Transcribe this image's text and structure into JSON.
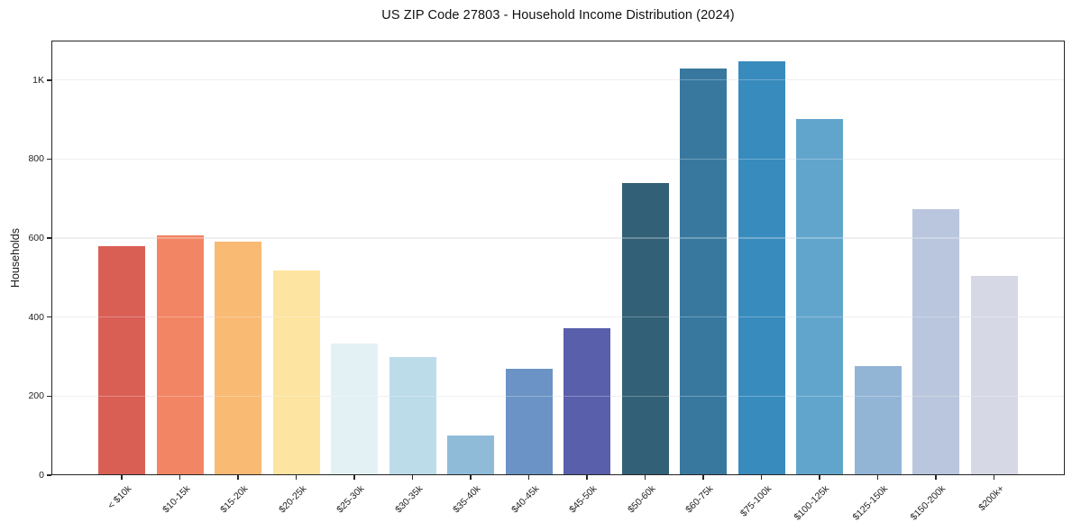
{
  "chart": {
    "title": "US ZIP Code 27803 - Household Income Distribution (2024)",
    "ylabel": "Households"
  },
  "chart_data": {
    "type": "bar",
    "title": "US ZIP Code 27803 - Household Income Distribution (2024)",
    "xlabel": "",
    "ylabel": "Households",
    "categories": [
      "< $10k",
      "$10-15k",
      "$15-20k",
      "$20-25k",
      "$25-30k",
      "$30-35k",
      "$35-40k",
      "$40-45k",
      "$45-50k",
      "$50-60k",
      "$60-75k",
      "$75-100k",
      "$100-125k",
      "$125-150k",
      "$150-200k",
      "$200k+"
    ],
    "values": [
      580,
      606,
      590,
      519,
      334,
      300,
      101,
      270,
      373,
      739,
      1030,
      1048,
      901,
      277,
      674,
      505
    ],
    "bar_colors": [
      "#d95f55",
      "#f28563",
      "#f9ba73",
      "#fde4a0",
      "#e3f1f5",
      "#bcdcea",
      "#8fbbd9",
      "#6b93c5",
      "#5a5fab",
      "#326076",
      "#38789f",
      "#388bbd",
      "#62a5cc",
      "#92b5d6",
      "#b9c6dd",
      "#d6d8e5"
    ],
    "ylim": [
      0,
      1100
    ],
    "yticks": [
      {
        "value": 0,
        "label": "0"
      },
      {
        "value": 200,
        "label": "200"
      },
      {
        "value": 400,
        "label": "400"
      },
      {
        "value": 600,
        "label": "600"
      },
      {
        "value": 800,
        "label": "800"
      },
      {
        "value": 1000,
        "label": "1K"
      }
    ],
    "grid": "horizontal",
    "legend": "none",
    "axis_color": "#262626",
    "grid_color": "#e9e9ee",
    "grid_over_bar_color": "rgba(255,255,255,0.28)"
  }
}
